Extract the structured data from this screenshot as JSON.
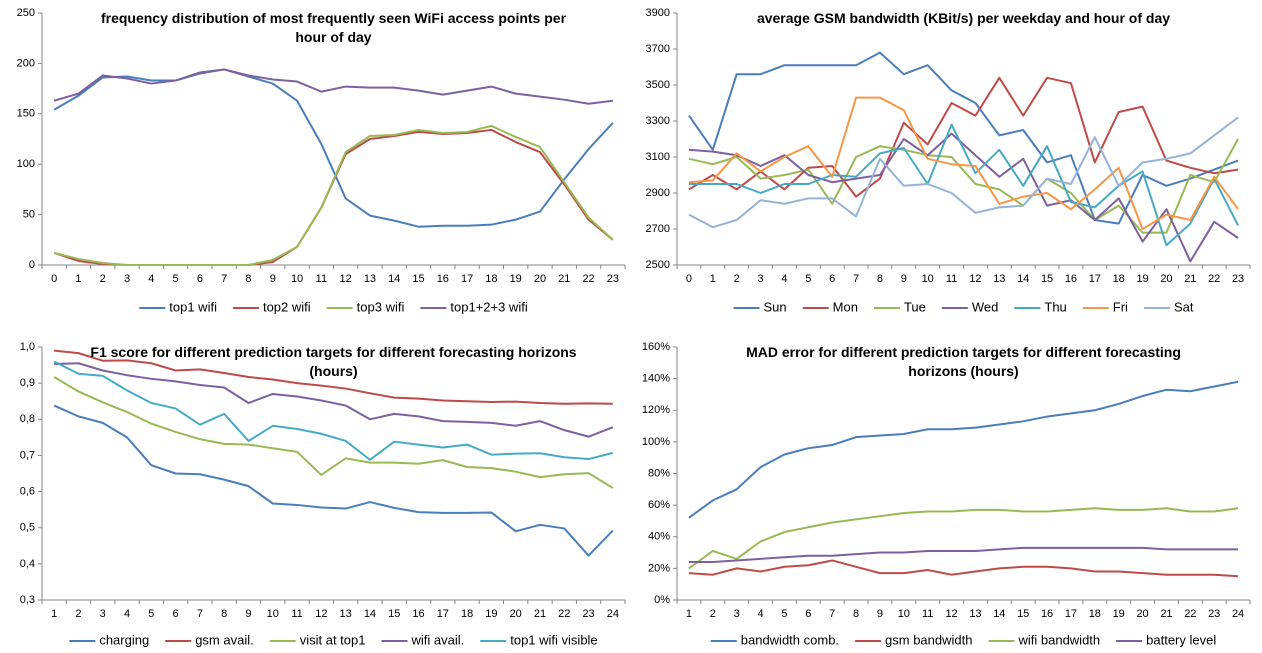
{
  "chart_data": [
    {
      "type": "line",
      "title": "frequency distribution of most frequently seen WiFi access points per hour of day",
      "categories": [
        "0",
        "1",
        "2",
        "3",
        "4",
        "5",
        "6",
        "7",
        "8",
        "9",
        "10",
        "11",
        "12",
        "13",
        "14",
        "15",
        "16",
        "17",
        "18",
        "19",
        "20",
        "21",
        "22",
        "23"
      ],
      "series": [
        {
          "name": "top1 wifi",
          "color": "#4a7ebb",
          "values": [
            154,
            168,
            186,
            187,
            183,
            183,
            190,
            194,
            187,
            180,
            163,
            120,
            66,
            49,
            44,
            38,
            39,
            39,
            40,
            45,
            53,
            85,
            115,
            141
          ]
        },
        {
          "name": "top2 wifi",
          "color": "#be4b48",
          "values": [
            12,
            4,
            1,
            0,
            0,
            0,
            0,
            0,
            0,
            3,
            18,
            57,
            110,
            125,
            128,
            132,
            130,
            131,
            134,
            122,
            112,
            80,
            45,
            25
          ]
        },
        {
          "name": "top3 wifi",
          "color": "#98b954",
          "values": [
            12,
            6,
            2,
            0,
            0,
            0,
            0,
            0,
            0,
            5,
            18,
            57,
            112,
            128,
            129,
            134,
            131,
            132,
            138,
            127,
            117,
            82,
            47,
            25
          ]
        },
        {
          "name": "top1+2+3 wifi",
          "color": "#7d60a0",
          "values": [
            163,
            170,
            188,
            185,
            180,
            183,
            191,
            194,
            188,
            184,
            182,
            172,
            177,
            176,
            176,
            173,
            169,
            173,
            177,
            170,
            167,
            164,
            160,
            163
          ]
        }
      ],
      "ylim": [
        0,
        250
      ],
      "yticks": [
        0,
        50,
        100,
        150,
        200,
        250
      ],
      "grid": false,
      "legend": "bottom"
    },
    {
      "type": "line",
      "title": "average GSM bandwidth (KBit/s) per weekday and hour of day",
      "categories": [
        "0",
        "1",
        "2",
        "3",
        "4",
        "5",
        "6",
        "7",
        "8",
        "9",
        "10",
        "11",
        "12",
        "13",
        "14",
        "15",
        "16",
        "17",
        "18",
        "19",
        "20",
        "21",
        "22",
        "23"
      ],
      "series": [
        {
          "name": "Sun",
          "color": "#4a7ebb",
          "values": [
            3330,
            3140,
            3560,
            3560,
            3610,
            3610,
            3610,
            3610,
            3680,
            3560,
            3610,
            3470,
            3400,
            3220,
            3250,
            3070,
            3110,
            2750,
            2730,
            3000,
            2940,
            2980,
            3030,
            3080
          ]
        },
        {
          "name": "Mon",
          "color": "#be4b48",
          "values": [
            2920,
            3000,
            2920,
            3020,
            2920,
            3040,
            3050,
            2880,
            2980,
            3290,
            3170,
            3400,
            3330,
            3540,
            3330,
            3540,
            3510,
            3070,
            3350,
            3380,
            3080,
            3040,
            3010,
            3030
          ]
        },
        {
          "name": "Tue",
          "color": "#98b954",
          "values": [
            3090,
            3060,
            3100,
            2980,
            3000,
            3030,
            2840,
            3100,
            3160,
            3140,
            3110,
            3100,
            2950,
            2920,
            2830,
            2980,
            2900,
            2750,
            2830,
            2680,
            2680,
            3000,
            2960,
            3200
          ]
        },
        {
          "name": "Wed",
          "color": "#7d60a0",
          "values": [
            3140,
            3130,
            3110,
            3050,
            3110,
            3000,
            2960,
            2980,
            3000,
            3200,
            3110,
            3230,
            3110,
            2990,
            3090,
            2830,
            2860,
            2750,
            2870,
            2630,
            2810,
            2520,
            2740,
            2650
          ]
        },
        {
          "name": "Thu",
          "color": "#46aac5",
          "values": [
            2950,
            2950,
            2950,
            2900,
            2950,
            2950,
            3000,
            2990,
            3120,
            3150,
            2950,
            3280,
            3010,
            3140,
            2940,
            3160,
            2850,
            2820,
            2940,
            3020,
            2610,
            2730,
            2980,
            2720
          ]
        },
        {
          "name": "Fri",
          "color": "#f79646",
          "values": [
            2960,
            2970,
            3120,
            3020,
            3100,
            3160,
            2990,
            3430,
            3430,
            3360,
            3090,
            3060,
            3050,
            2840,
            2880,
            2900,
            2810,
            2920,
            3040,
            2700,
            2780,
            2750,
            2990,
            2810
          ]
        },
        {
          "name": "Sat",
          "color": "#95b3d7",
          "values": [
            2780,
            2710,
            2750,
            2860,
            2840,
            2870,
            2870,
            2770,
            3090,
            2940,
            2950,
            2900,
            2790,
            2820,
            2830,
            2980,
            2950,
            3210,
            2940,
            3070,
            3090,
            3120,
            3220,
            3320
          ]
        }
      ],
      "ylim": [
        2500,
        3900
      ],
      "yticks": [
        2500,
        2700,
        2900,
        3100,
        3300,
        3500,
        3700,
        3900
      ],
      "grid": false,
      "legend": "bottom"
    },
    {
      "type": "line",
      "title": "F1 score for different prediction targets for different forecasting horizons (hours)",
      "categories": [
        "1",
        "2",
        "3",
        "4",
        "5",
        "6",
        "7",
        "8",
        "9",
        "10",
        "11",
        "12",
        "13",
        "14",
        "15",
        "16",
        "17",
        "18",
        "19",
        "20",
        "21",
        "22",
        "23",
        "24"
      ],
      "series": [
        {
          "name": "charging",
          "color": "#4a7ebb",
          "values": [
            0.838,
            0.808,
            0.79,
            0.75,
            0.673,
            0.65,
            0.648,
            0.633,
            0.615,
            0.567,
            0.563,
            0.556,
            0.553,
            0.571,
            0.555,
            0.543,
            0.541,
            0.541,
            0.542,
            0.49,
            0.508,
            0.498,
            0.423,
            0.492
          ]
        },
        {
          "name": "gsm avail.",
          "color": "#be4b48",
          "values": [
            0.99,
            0.983,
            0.962,
            0.963,
            0.955,
            0.935,
            0.938,
            0.928,
            0.917,
            0.91,
            0.9,
            0.893,
            0.885,
            0.872,
            0.86,
            0.857,
            0.852,
            0.85,
            0.848,
            0.849,
            0.845,
            0.843,
            0.844,
            0.843
          ]
        },
        {
          "name": "visit at top1",
          "color": "#98b954",
          "values": [
            0.917,
            0.877,
            0.847,
            0.82,
            0.788,
            0.765,
            0.745,
            0.732,
            0.73,
            0.72,
            0.71,
            0.646,
            0.692,
            0.68,
            0.68,
            0.677,
            0.687,
            0.668,
            0.665,
            0.655,
            0.64,
            0.648,
            0.651,
            0.61
          ]
        },
        {
          "name": "wifi avail.",
          "color": "#7d60a0",
          "values": [
            0.953,
            0.955,
            0.935,
            0.922,
            0.912,
            0.905,
            0.895,
            0.888,
            0.845,
            0.87,
            0.863,
            0.852,
            0.838,
            0.8,
            0.815,
            0.808,
            0.795,
            0.793,
            0.79,
            0.782,
            0.795,
            0.77,
            0.752,
            0.778
          ]
        },
        {
          "name": "top1 wifi visible",
          "color": "#46aac5",
          "values": [
            0.96,
            0.926,
            0.92,
            0.88,
            0.845,
            0.83,
            0.785,
            0.815,
            0.74,
            0.782,
            0.773,
            0.76,
            0.74,
            0.688,
            0.738,
            0.73,
            0.722,
            0.73,
            0.702,
            0.705,
            0.706,
            0.695,
            0.69,
            0.707
          ]
        }
      ],
      "ylim": [
        0.3,
        1.0
      ],
      "yticks": [
        {
          "value": 0.3,
          "label": "0,3"
        },
        {
          "value": 0.4,
          "label": "0,4"
        },
        {
          "value": 0.5,
          "label": "0,5"
        },
        {
          "value": 0.6,
          "label": "0,6"
        },
        {
          "value": 0.7,
          "label": "0,7"
        },
        {
          "value": 0.8,
          "label": "0,8"
        },
        {
          "value": 0.9,
          "label": "0,9"
        },
        {
          "value": 1.0,
          "label": "1,0"
        }
      ],
      "grid": false,
      "legend": "bottom"
    },
    {
      "type": "line",
      "title": "MAD error for different prediction targets for different forecasting horizons (hours)",
      "categories": [
        "1",
        "2",
        "3",
        "4",
        "5",
        "6",
        "7",
        "8",
        "9",
        "10",
        "11",
        "12",
        "13",
        "14",
        "15",
        "16",
        "17",
        "18",
        "19",
        "20",
        "21",
        "22",
        "23",
        "24"
      ],
      "series": [
        {
          "name": "bandwidth comb.",
          "color": "#4a7ebb",
          "values": [
            52,
            63,
            70,
            84,
            92,
            96,
            98,
            103,
            104,
            105,
            108,
            108,
            109,
            111,
            113,
            116,
            118,
            120,
            124,
            129,
            133,
            132,
            135,
            138
          ]
        },
        {
          "name": "gsm bandwidth",
          "color": "#be4b48",
          "values": [
            17,
            16,
            20,
            18,
            21,
            22,
            25,
            21,
            17,
            17,
            19,
            16,
            18,
            20,
            21,
            21,
            20,
            18,
            18,
            17,
            16,
            16,
            16,
            15
          ]
        },
        {
          "name": "wifi bandwidth",
          "color": "#98b954",
          "values": [
            20,
            31,
            26,
            37,
            43,
            46,
            49,
            51,
            53,
            55,
            56,
            56,
            57,
            57,
            56,
            56,
            57,
            58,
            57,
            57,
            58,
            56,
            56,
            58
          ]
        },
        {
          "name": "battery level",
          "color": "#7d60a0",
          "values": [
            24,
            24,
            25,
            26,
            27,
            28,
            28,
            29,
            30,
            30,
            31,
            31,
            31,
            32,
            33,
            33,
            33,
            33,
            33,
            33,
            32,
            32,
            32,
            32
          ]
        }
      ],
      "ylim": [
        0,
        160
      ],
      "yticks": [
        {
          "value": 0,
          "label": "0%"
        },
        {
          "value": 20,
          "label": "20%"
        },
        {
          "value": 40,
          "label": "40%"
        },
        {
          "value": 60,
          "label": "60%"
        },
        {
          "value": 80,
          "label": "80%"
        },
        {
          "value": 100,
          "label": "100%"
        },
        {
          "value": 120,
          "label": "120%"
        },
        {
          "value": 140,
          "label": "140%"
        },
        {
          "value": 160,
          "label": "160%"
        }
      ],
      "grid": false,
      "legend": "bottom"
    }
  ]
}
